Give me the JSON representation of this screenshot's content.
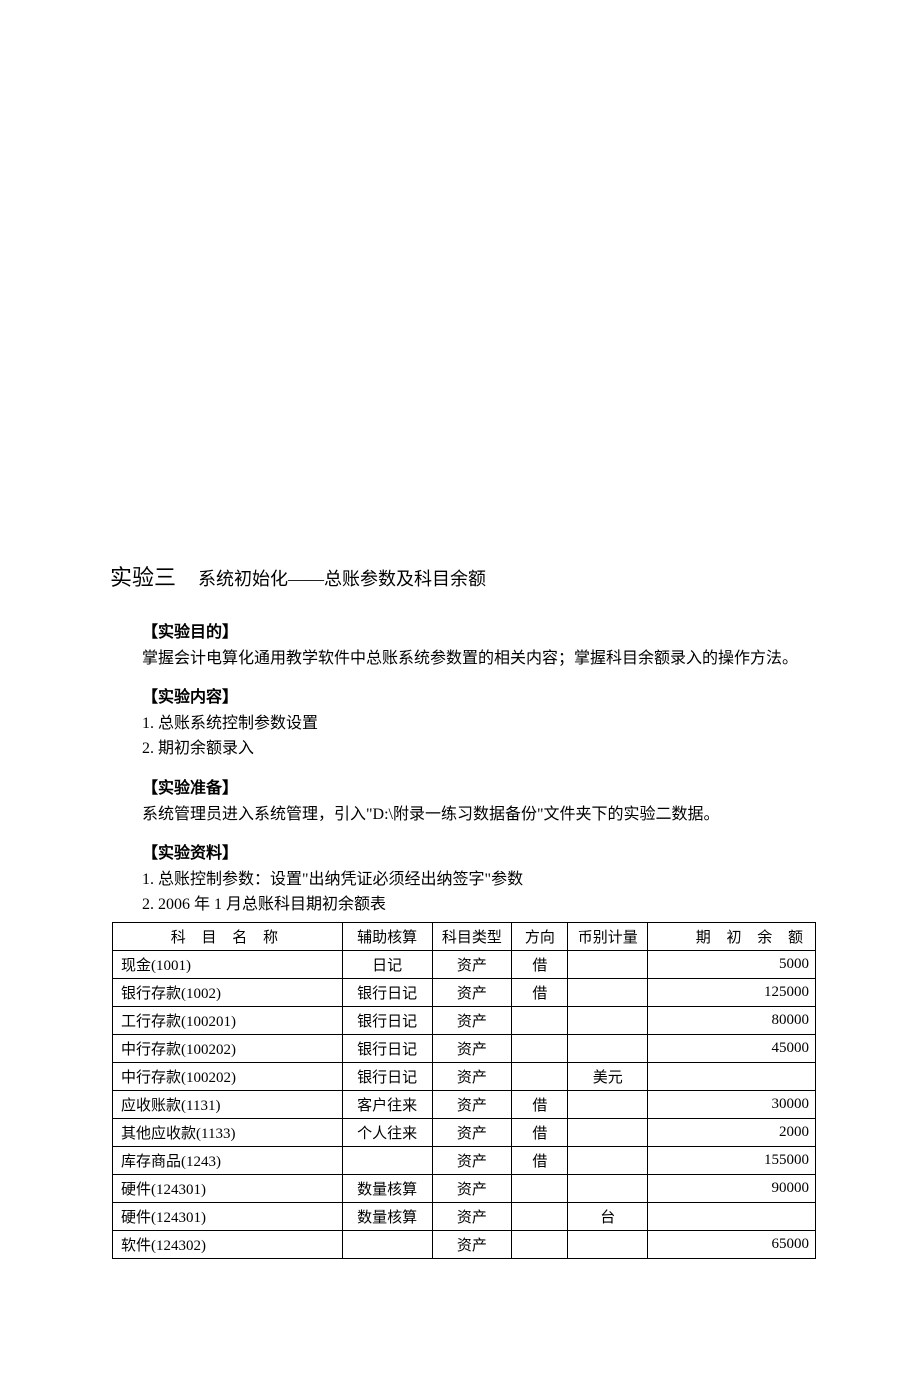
{
  "title": {
    "main": "实验三",
    "sub": "系统初始化——总账参数及科目余额"
  },
  "sections": {
    "purpose": {
      "header": "【实验目的】",
      "text": "掌握会计电算化通用教学软件中总账系统参数置的相关内容；掌握科目余额录入的操作方法。"
    },
    "content": {
      "header": "【实验内容】",
      "items": [
        "1. 总账系统控制参数设置",
        "2. 期初余额录入"
      ]
    },
    "prep": {
      "header": "【实验准备】",
      "text": "系统管理员进入系统管理，引入\"D:\\附录一练习数据备份\"文件夹下的实验二数据。"
    },
    "material": {
      "header": "【实验资料】",
      "items": [
        "1. 总账控制参数：设置\"出纳凭证必须经出纳签字\"参数",
        "2. 2006 年 1 月总账科目期初余额表"
      ]
    }
  },
  "table": {
    "headers": {
      "name": "科 目 名 称",
      "aux": "辅助核算",
      "type": "科目类型",
      "dir": "方向",
      "curr": "币别计量",
      "bal": "期 初 余 额"
    },
    "rows": [
      {
        "name": "现金(1001)",
        "indent": 0,
        "aux": "日记",
        "type": "资产",
        "dir": "借",
        "curr": "",
        "bal": "5000"
      },
      {
        "name": "银行存款(1002)",
        "indent": 0,
        "aux": "银行日记",
        "type": "资产",
        "dir": "借",
        "curr": "",
        "bal": "125000"
      },
      {
        "name": "工行存款(100201)",
        "indent": 1,
        "aux": "银行日记",
        "type": "资产",
        "dir": "",
        "curr": "",
        "bal": "80000"
      },
      {
        "name": "中行存款(100202)",
        "indent": 1,
        "aux": "银行日记",
        "type": "资产",
        "dir": "",
        "curr": "",
        "bal": "45000"
      },
      {
        "name": "中行存款(100202)",
        "indent": 1,
        "aux": "银行日记",
        "type": "资产",
        "dir": "",
        "curr": "美元",
        "bal": ""
      },
      {
        "name": "应收账款(1131)",
        "indent": 0,
        "aux": "客户往来",
        "type": "资产",
        "dir": "借",
        "curr": "",
        "bal": "30000"
      },
      {
        "name": "其他应收款(1133)",
        "indent": 0,
        "aux": "个人往来",
        "type": "资产",
        "dir": "借",
        "curr": "",
        "bal": "2000"
      },
      {
        "name": "库存商品(1243)",
        "indent": 0,
        "aux": "",
        "type": "资产",
        "dir": "借",
        "curr": "",
        "bal": "155000"
      },
      {
        "name": "硬件(124301)",
        "indent": 1,
        "aux": "数量核算",
        "type": "资产",
        "dir": "",
        "curr": "",
        "bal": "90000"
      },
      {
        "name": "硬件(124301)",
        "indent": 1,
        "aux": "数量核算",
        "type": "资产",
        "dir": "",
        "curr": "台",
        "bal": ""
      },
      {
        "name": "软件(124302)",
        "indent": 1,
        "aux": "",
        "type": "资产",
        "dir": "",
        "curr": "",
        "bal": "65000"
      }
    ]
  }
}
